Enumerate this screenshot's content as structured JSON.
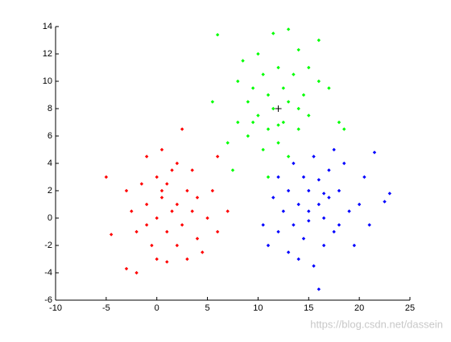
{
  "chart_data": {
    "type": "scatter",
    "xlim": [
      -10,
      25
    ],
    "xticks": [
      -10,
      -5,
      0,
      5,
      10,
      15,
      20,
      25
    ],
    "ylim": [
      -6,
      14
    ],
    "yticks": [
      -6,
      -4,
      -2,
      0,
      2,
      4,
      6,
      8,
      10,
      12,
      14
    ],
    "series": [
      {
        "color": "#ff0000",
        "x": [
          -5,
          -4.5,
          -3,
          -2,
          -3,
          -2.5,
          -2,
          -1.5,
          -1,
          -1,
          -0.5,
          0,
          0,
          0,
          0.5,
          0.5,
          1,
          1,
          1,
          1.5,
          1.5,
          2,
          2,
          2,
          2.5,
          2.5,
          3,
          3,
          3.5,
          3.5,
          4,
          4,
          4.5,
          5,
          5.5,
          6,
          6,
          7,
          -1,
          0.5
        ],
        "y": [
          3,
          -1.2,
          -3.7,
          -4,
          2,
          0.5,
          -1,
          2.5,
          4.5,
          1,
          -2,
          3,
          0,
          -3,
          5,
          1.5,
          -1,
          2.5,
          -3.2,
          0.5,
          3.5,
          -2,
          1,
          4,
          6.5,
          -0.5,
          2,
          -3,
          0.5,
          3.5,
          -1.5,
          1.5,
          -2.5,
          0,
          2,
          4.5,
          -1,
          0.5,
          -0.5,
          2
        ]
      },
      {
        "color": "#00ff00",
        "x": [
          6,
          5.5,
          7,
          7.5,
          8,
          8,
          8.5,
          9,
          9,
          9.5,
          10,
          10,
          10.5,
          10.5,
          11,
          11,
          11.5,
          11.5,
          12,
          12,
          12.5,
          12.5,
          13,
          13,
          13,
          13.5,
          14,
          14,
          14.5,
          15,
          15,
          16,
          16,
          17,
          18,
          18.5,
          11,
          9.5,
          12,
          14
        ],
        "y": [
          13.4,
          8.5,
          5.5,
          3.5,
          10,
          7,
          11.5,
          8.5,
          6,
          9.5,
          12,
          7.5,
          10.5,
          5,
          9,
          6.5,
          13.5,
          8,
          11,
          5.5,
          9.5,
          7,
          13.8,
          8.5,
          4.5,
          10.5,
          6.5,
          12.3,
          9,
          11,
          7.5,
          10,
          13,
          9.5,
          7,
          6.5,
          3,
          7,
          6.8,
          8
        ]
      },
      {
        "color": "#0000ff",
        "x": [
          10.5,
          11,
          11.5,
          12,
          12,
          12.5,
          13,
          13,
          13.5,
          13.5,
          14,
          14,
          14.5,
          14.5,
          15,
          15,
          15.5,
          15.5,
          16,
          16,
          16,
          16.5,
          16.5,
          17,
          17,
          17.5,
          17.5,
          18,
          18,
          18.5,
          19,
          19.5,
          20,
          20.5,
          21,
          21.5,
          23,
          22.5,
          15,
          16.5
        ],
        "y": [
          -0.5,
          -2,
          1.5,
          3,
          -1,
          0.5,
          -2.5,
          2,
          4,
          -0.5,
          1,
          -3,
          3,
          -1.5,
          2,
          -0.2,
          4.5,
          -3.5,
          1,
          -5.2,
          2.8,
          0,
          -2,
          3.5,
          1.5,
          -1,
          5,
          2,
          -0.5,
          4,
          0.5,
          -2,
          1,
          3,
          -0.5,
          4.8,
          1.8,
          1.2,
          0.5,
          1.8
        ]
      }
    ],
    "centroid": {
      "x": 12,
      "y": 8,
      "color": "#000000",
      "marker": "+"
    },
    "watermark": "https://blog.csdn.net/dassein"
  }
}
